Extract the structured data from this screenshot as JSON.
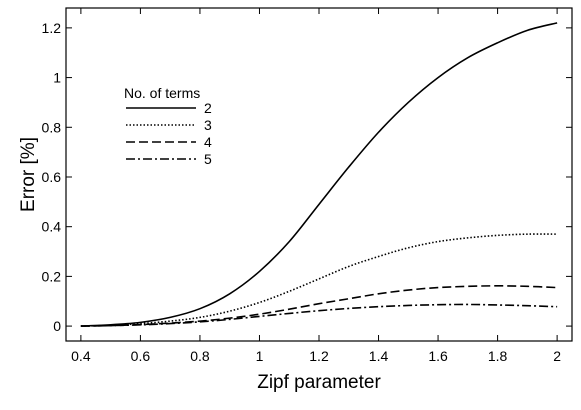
{
  "chart_data": {
    "type": "line",
    "xlabel": "Zipf parameter",
    "ylabel": "Error [%]",
    "xlim": [
      0.35,
      2.05
    ],
    "ylim": [
      -0.06,
      1.28
    ],
    "xticks": [
      0.4,
      0.6,
      0.8,
      1,
      1.2,
      1.4,
      1.6,
      1.8,
      2
    ],
    "xtick_labels": [
      "0.4",
      "0.6",
      "0.8",
      "1",
      "1.2",
      "1.4",
      "1.6",
      "1.8",
      "2"
    ],
    "yticks": [
      0,
      0.2,
      0.4,
      0.6,
      0.8,
      1,
      1.2
    ],
    "ytick_labels": [
      "0",
      "0.2",
      "0.4",
      "0.6",
      "0.8",
      "1",
      "1.2"
    ],
    "grid": false,
    "legend": {
      "title": "No. of terms",
      "placement": "upper-left"
    },
    "x": [
      0.4,
      0.5,
      0.6,
      0.7,
      0.8,
      0.9,
      1.0,
      1.1,
      1.2,
      1.3,
      1.4,
      1.5,
      1.6,
      1.7,
      1.8,
      1.9,
      2.0
    ],
    "series": [
      {
        "name": "2",
        "dash": "solid",
        "values": [
          0.0,
          0.005,
          0.015,
          0.035,
          0.07,
          0.13,
          0.22,
          0.34,
          0.49,
          0.64,
          0.78,
          0.9,
          1.0,
          1.08,
          1.14,
          1.19,
          1.22
        ]
      },
      {
        "name": "3",
        "dash": "dotted",
        "values": [
          0.0,
          0.003,
          0.01,
          0.02,
          0.035,
          0.06,
          0.095,
          0.14,
          0.19,
          0.24,
          0.28,
          0.315,
          0.34,
          0.355,
          0.365,
          0.37,
          0.37
        ]
      },
      {
        "name": "4",
        "dash": "dashed",
        "values": [
          0.0,
          0.002,
          0.006,
          0.012,
          0.02,
          0.032,
          0.048,
          0.068,
          0.09,
          0.11,
          0.13,
          0.145,
          0.155,
          0.16,
          0.162,
          0.16,
          0.155
        ]
      },
      {
        "name": "5",
        "dash": "dashdot",
        "values": [
          0.0,
          0.002,
          0.005,
          0.01,
          0.017,
          0.027,
          0.039,
          0.051,
          0.062,
          0.071,
          0.078,
          0.083,
          0.086,
          0.087,
          0.085,
          0.082,
          0.078
        ]
      }
    ]
  }
}
